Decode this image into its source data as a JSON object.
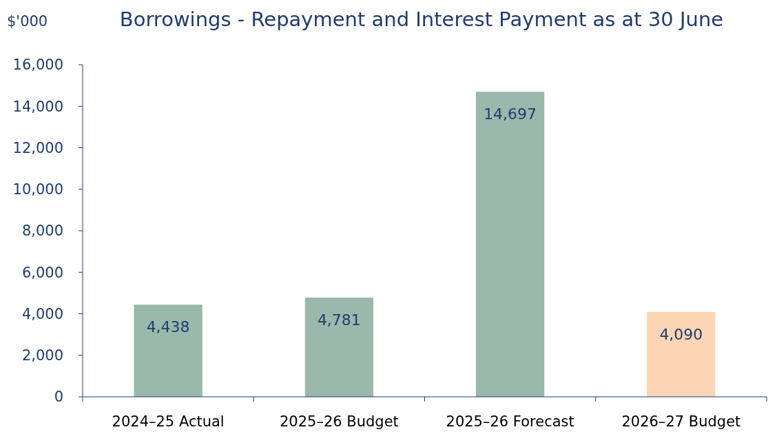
{
  "chart_data": {
    "type": "bar",
    "title": "Borrowings - Repayment and Interest Payment as at 30 June",
    "ylabel": "$'000",
    "categories": [
      "2024–25 Actual",
      "2025–26 Budget",
      "2025–26 Forecast",
      "2026–27 Budget"
    ],
    "values": [
      4438,
      4781,
      14697,
      4090
    ],
    "colors": [
      "#9ab8ab",
      "#9ab8ab",
      "#9ab8ab",
      "#fcd5b4"
    ],
    "ylim": [
      0,
      16000
    ],
    "yticks": [
      {
        "value": 0,
        "label": "0"
      },
      {
        "value": 2000,
        "label": "2,000"
      },
      {
        "value": 4000,
        "label": "4,000"
      },
      {
        "value": 6000,
        "label": "6,000"
      },
      {
        "value": 8000,
        "label": "8,000"
      },
      {
        "value": 10000,
        "label": "10,000"
      },
      {
        "value": 12000,
        "label": "12,000"
      },
      {
        "value": 14000,
        "label": "14,000"
      },
      {
        "value": 16000,
        "label": "16,000"
      }
    ],
    "value_labels": [
      "4,438",
      "4,781",
      "14,697",
      "4,090"
    ]
  }
}
